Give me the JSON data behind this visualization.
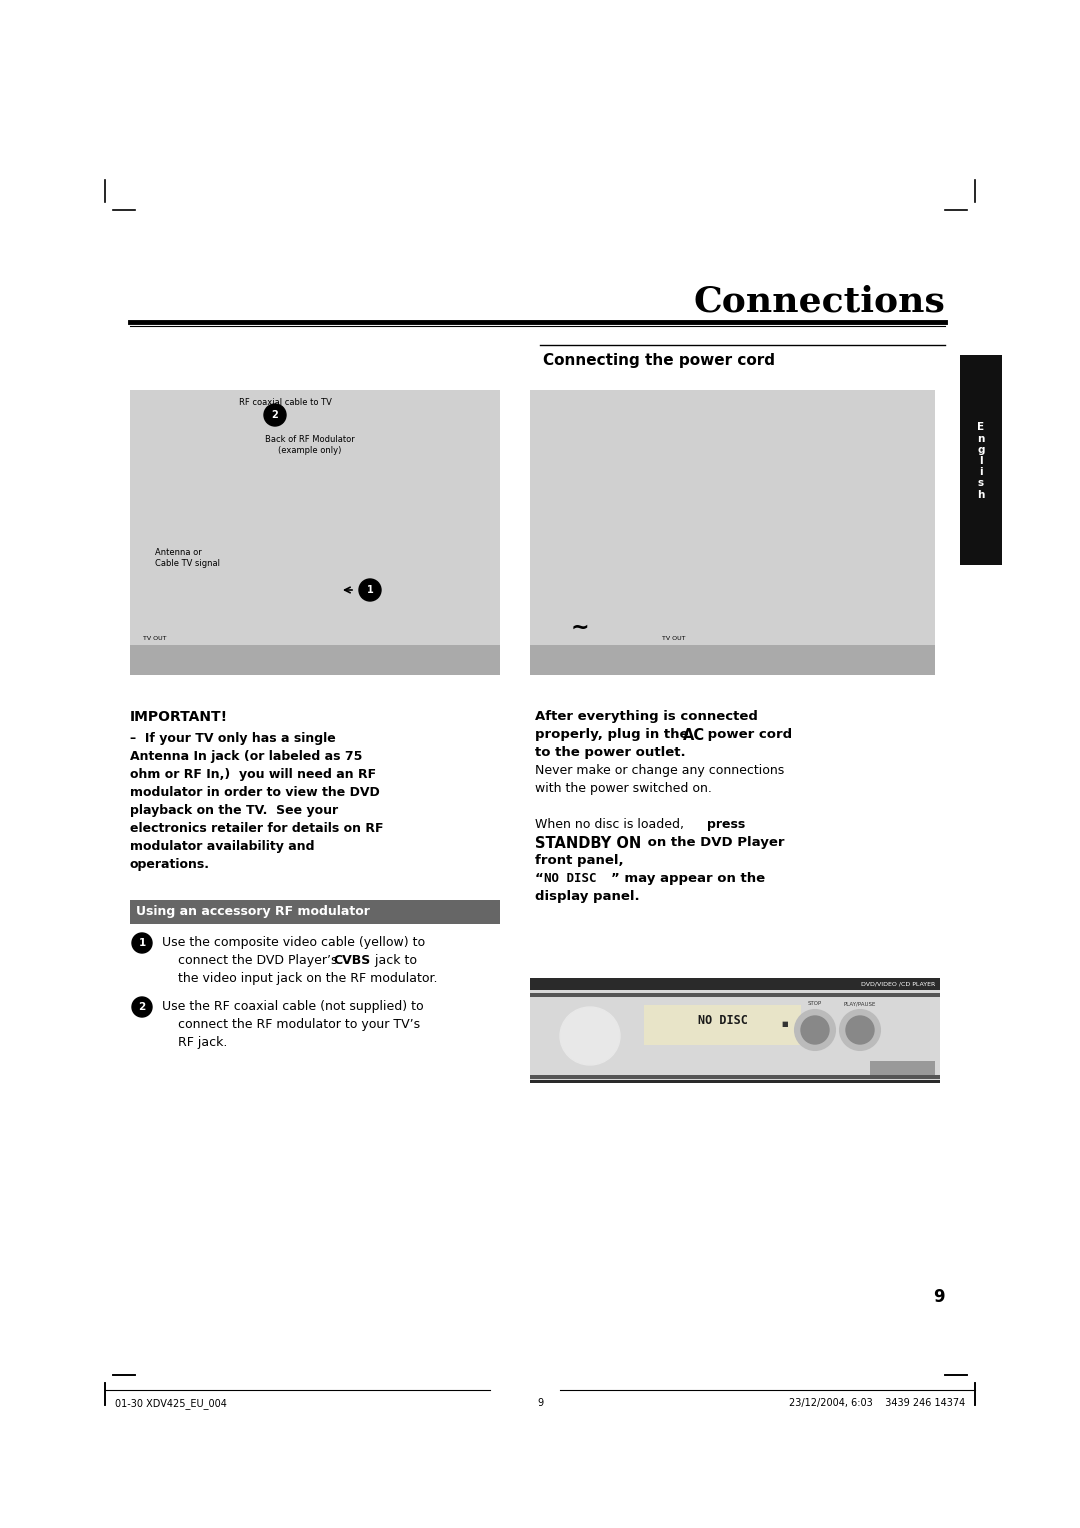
{
  "page_bg": "#ffffff",
  "page_width": 10.8,
  "page_height": 15.28,
  "title": "Connections",
  "title_fontsize": 26,
  "english_tab_color": "#111111",
  "body_fontsize": 9.0,
  "diagram_left_color": "#d0d0d0",
  "diagram_right_color": "#d0d0d0",
  "rf_modulator_banner_color": "#666666",
  "rf_modulator_text": "Using an accessory RF modulator",
  "rf_modulator_text_color": "#ffffff",
  "dvd_display_color": "#d8d8d8",
  "page_number": "9",
  "footer_left": "01-30 XDV425_EU_004",
  "footer_center": "9",
  "footer_right": "23/12/2004, 6:03    3439 246 14374",
  "footer_fontsize": 7
}
